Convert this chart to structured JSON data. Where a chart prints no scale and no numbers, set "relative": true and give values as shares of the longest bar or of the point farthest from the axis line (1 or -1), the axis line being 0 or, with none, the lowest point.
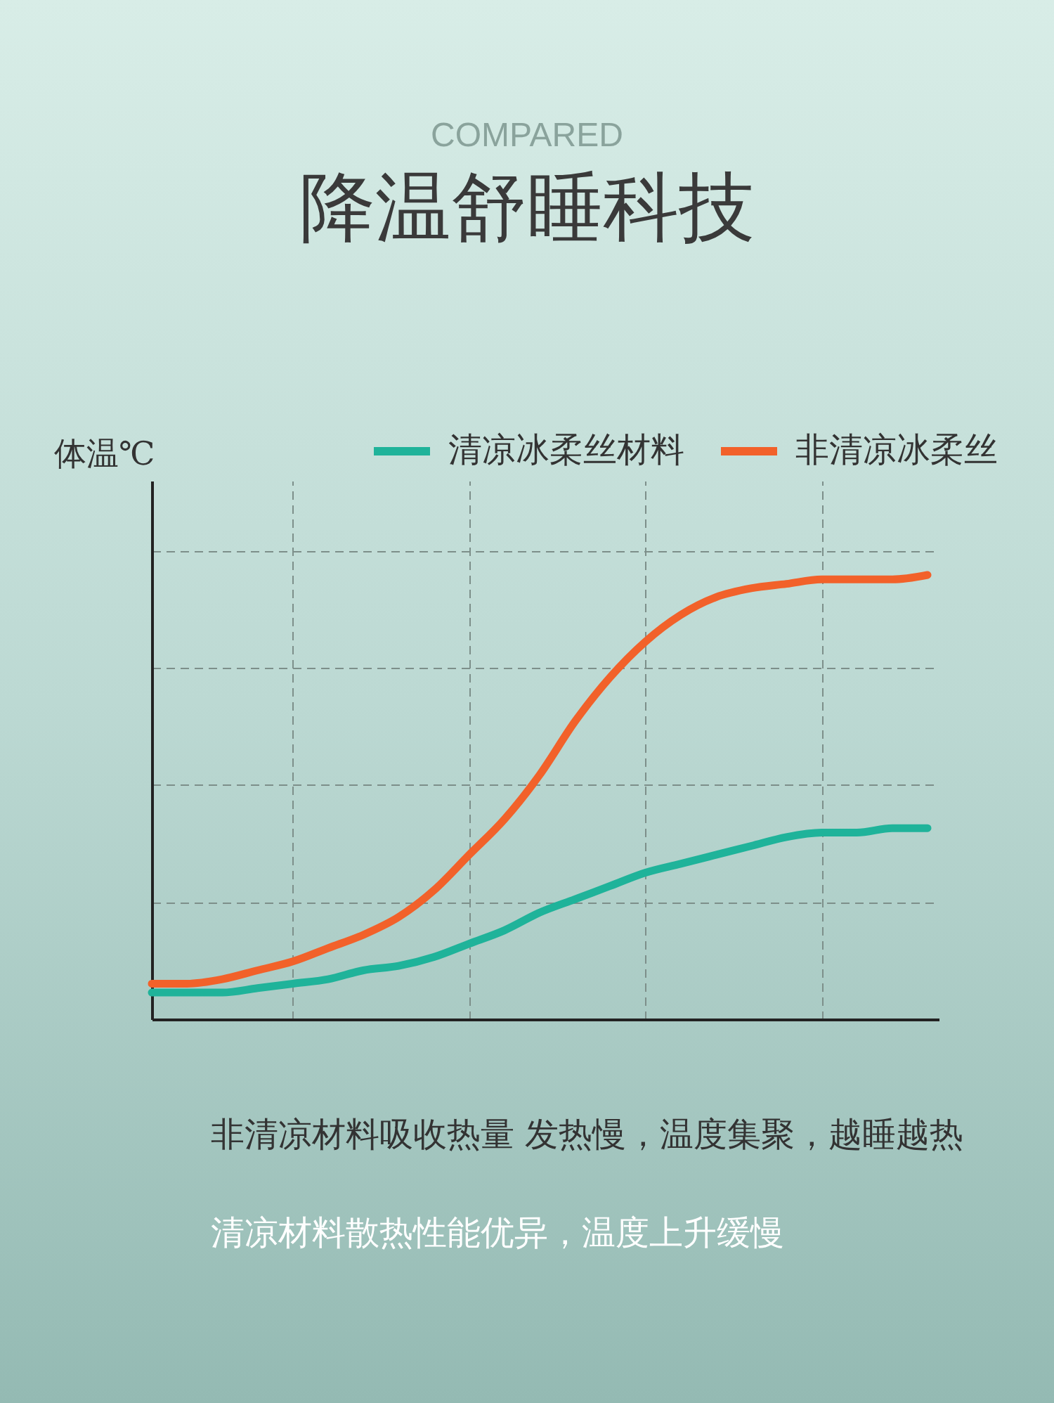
{
  "chart_data": {
    "type": "line",
    "title": "降温舒睡科技",
    "subtitle": "COMPARED",
    "ylabel": "体温℃",
    "annotations": [
      "非清凉材料吸收热量 发热慢，温度集聚，越睡越热",
      "清凉材料散热性能优异，温度上升缓慢"
    ],
    "categories": [
      null,
      null,
      null,
      null,
      null,
      null,
      null,
      null,
      null,
      null,
      null,
      null,
      null,
      null,
      null,
      null,
      null,
      null,
      null,
      null,
      null,
      null,
      null
    ],
    "series": [
      {
        "name": "清凉冰柔丝材料",
        "color": "#1fb39a",
        "values": [
          0.06,
          0.06,
          0.06,
          0.07,
          0.08,
          0.09,
          0.11,
          0.12,
          0.14,
          0.17,
          0.2,
          0.24,
          0.27,
          0.3,
          0.33,
          0.35,
          0.37,
          0.39,
          0.41,
          0.42,
          0.42,
          0.43,
          0.43
        ]
      },
      {
        "name": "非清凉冰柔丝",
        "color": "#f2612a",
        "values": [
          0.08,
          0.08,
          0.09,
          0.11,
          0.13,
          0.16,
          0.19,
          0.23,
          0.29,
          0.37,
          0.45,
          0.55,
          0.67,
          0.77,
          0.85,
          0.91,
          0.95,
          0.97,
          0.98,
          0.99,
          0.99,
          0.99,
          1
        ]
      }
    ],
    "relative": true,
    "legend": "top right",
    "grid": true,
    "line_style": "solid"
  }
}
